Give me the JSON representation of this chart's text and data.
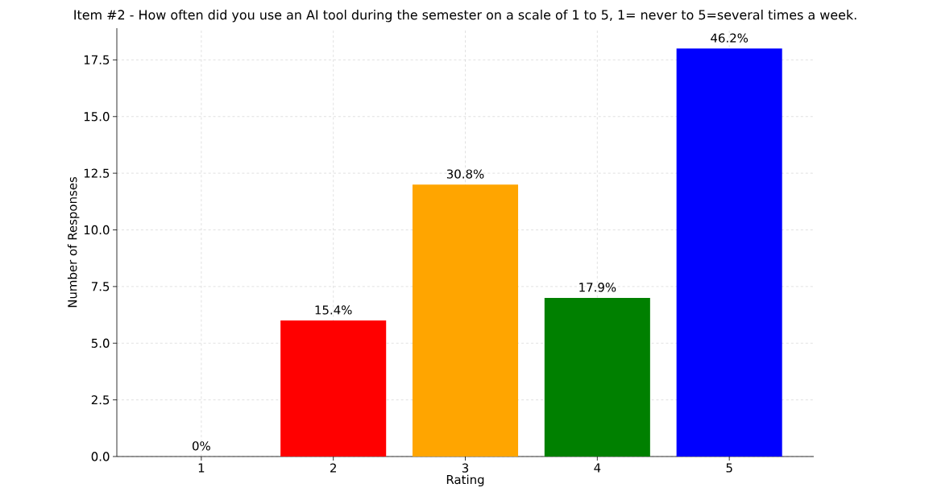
{
  "chart_data": {
    "type": "bar",
    "title": "Item #2 - How often did you use an AI tool during the semester on a scale of 1 to 5, 1= never to 5=several times a week.",
    "xlabel": "Rating",
    "ylabel": "Number of Responses",
    "categories": [
      "1",
      "2",
      "3",
      "4",
      "5"
    ],
    "values": [
      0,
      6,
      12,
      7,
      18
    ],
    "colors": [
      "#808080",
      "#ff0000",
      "#ffa500",
      "#008000",
      "#0000ff"
    ],
    "annotations": [
      {
        "text": "0%",
        "x": "1",
        "y": 0
      },
      {
        "text": "15.4%",
        "x": "2",
        "y": 6
      },
      {
        "text": "30.8%",
        "x": "3",
        "y": 12
      },
      {
        "text": "17.9%",
        "x": "4",
        "y": 7
      },
      {
        "text": "46.2%",
        "x": "5",
        "y": 18
      }
    ],
    "ylim": [
      0,
      18.9
    ],
    "yticks": [
      {
        "value": 0,
        "label": "0.0"
      },
      {
        "value": 2.5,
        "label": "2.5"
      },
      {
        "value": 5,
        "label": "5.0"
      },
      {
        "value": 7.5,
        "label": "7.5"
      },
      {
        "value": 10,
        "label": "10.0"
      },
      {
        "value": 12.5,
        "label": "12.5"
      },
      {
        "value": 15,
        "label": "15.0"
      },
      {
        "value": 17.5,
        "label": "17.5"
      }
    ],
    "grid": true
  }
}
